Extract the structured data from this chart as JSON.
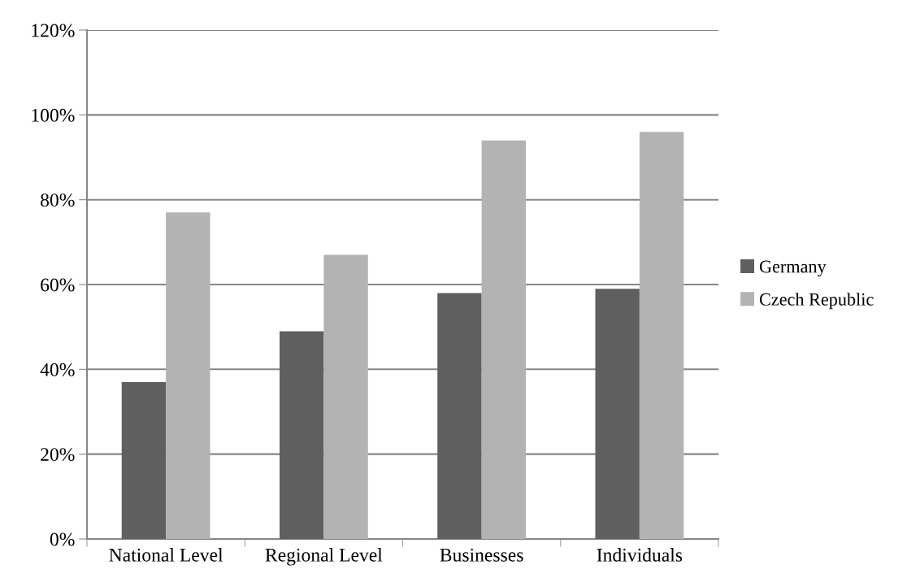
{
  "chart_data": {
    "type": "bar",
    "categories": [
      "National Level",
      "Regional Level",
      "Businesses",
      "Individuals"
    ],
    "series": [
      {
        "name": "Germany",
        "color": "#5f5f5f",
        "values": [
          37,
          49,
          58,
          59
        ]
      },
      {
        "name": "Czech Republic",
        "color": "#b3b3b3",
        "values": [
          77,
          67,
          94,
          96
        ]
      }
    ],
    "ylim": [
      0,
      120
    ],
    "yticks": [
      {
        "value": 0,
        "label": "0%"
      },
      {
        "value": 20,
        "label": "20%"
      },
      {
        "value": 40,
        "label": "40%"
      },
      {
        "value": 60,
        "label": "60%"
      },
      {
        "value": 80,
        "label": "80%"
      },
      {
        "value": 100,
        "label": "100%"
      },
      {
        "value": 120,
        "label": "120%"
      }
    ],
    "grid": "y",
    "legend": "right"
  }
}
